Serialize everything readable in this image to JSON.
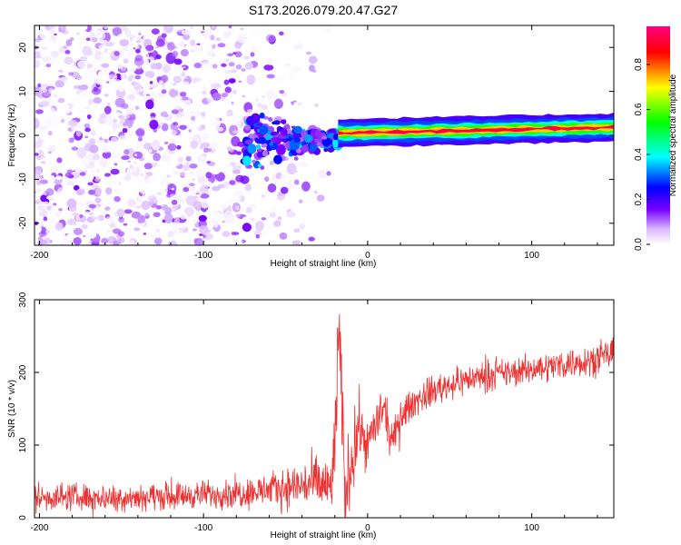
{
  "chart_data": [
    {
      "type": "heatmap",
      "title": "S173.2026.079.20.47.G27",
      "xlabel": "Height of straight line (km)",
      "ylabel": "Frequency (Hz)",
      "xlim": [
        -203,
        150
      ],
      "ylim": [
        -25,
        25
      ],
      "xticks": [
        -200,
        -100,
        0,
        100
      ],
      "xtick_labels": [
        "-200",
        "-100",
        "0",
        "100"
      ],
      "yticks": [
        -20,
        -10,
        0,
        10,
        20
      ],
      "ytick_labels": [
        "-20",
        "-10",
        "0",
        "10",
        "20"
      ],
      "colorbar": {
        "label": "Normalized spectral amplitude",
        "range": [
          0,
          0.97
        ],
        "ticks": [
          0,
          0.2,
          0.4,
          0.6,
          0.8
        ],
        "tick_labels": [
          "0.0",
          "0.2",
          "0.4",
          "0.6",
          "0.8"
        ],
        "colormap": [
          "#ffffff",
          "#7700ff",
          "#0000ff",
          "#00ffff",
          "#00ff00",
          "#ffff00",
          "#ff0000",
          "#ff0080"
        ]
      },
      "features": [
        {
          "name": "diffuse noise",
          "x_range": [
            -203,
            -20
          ],
          "freq_range": [
            -25,
            25
          ],
          "amplitude": 0.05
        },
        {
          "name": "scattered signal",
          "x_range": [
            -75,
            -18
          ],
          "freq_range": [
            -7,
            5
          ],
          "amplitude": 0.2
        },
        {
          "name": "carrier line",
          "x_range": [
            -18,
            150
          ],
          "freq_start": 0.5,
          "freq_end": 1.8,
          "amplitude": 0.95
        }
      ]
    },
    {
      "type": "line",
      "title": "",
      "xlabel": "Height of straight line (km)",
      "ylabel": "SNR (10 * v/v)",
      "xlim": [
        -203,
        150
      ],
      "ylim": [
        0,
        300
      ],
      "xticks": [
        -200,
        -100,
        0,
        100
      ],
      "xtick_labels": [
        "-200",
        "-100",
        "0",
        "100"
      ],
      "yticks": [
        0,
        100,
        200,
        300
      ],
      "ytick_labels": [
        "0",
        "100",
        "200",
        "300"
      ],
      "color": "#ee3030",
      "series": [
        {
          "name": "SNR",
          "x": [
            -203,
            -180,
            -160,
            -140,
            -120,
            -100,
            -80,
            -60,
            -50,
            -40,
            -30,
            -22,
            -20,
            -18,
            -16,
            -14,
            -10,
            -5,
            0,
            5,
            10,
            15,
            20,
            30,
            40,
            50,
            60,
            70,
            80,
            90,
            100,
            110,
            120,
            130,
            140,
            150
          ],
          "y": [
            28,
            29,
            28,
            29,
            30,
            32,
            34,
            38,
            42,
            45,
            47,
            40,
            100,
            240,
            175,
            35,
            80,
            125,
            100,
            130,
            150,
            100,
            140,
            162,
            175,
            183,
            190,
            195,
            198,
            200,
            205,
            208,
            212,
            215,
            220,
            225
          ]
        }
      ],
      "noise_amplitude": [
        16,
        16,
        16,
        16,
        16,
        16,
        18,
        20,
        24,
        28,
        34,
        40,
        60,
        60,
        60,
        50,
        45,
        38,
        30,
        28,
        25,
        22,
        20,
        18,
        18,
        18,
        17,
        17,
        17,
        17,
        17,
        17,
        18,
        18,
        18,
        18
      ]
    }
  ]
}
